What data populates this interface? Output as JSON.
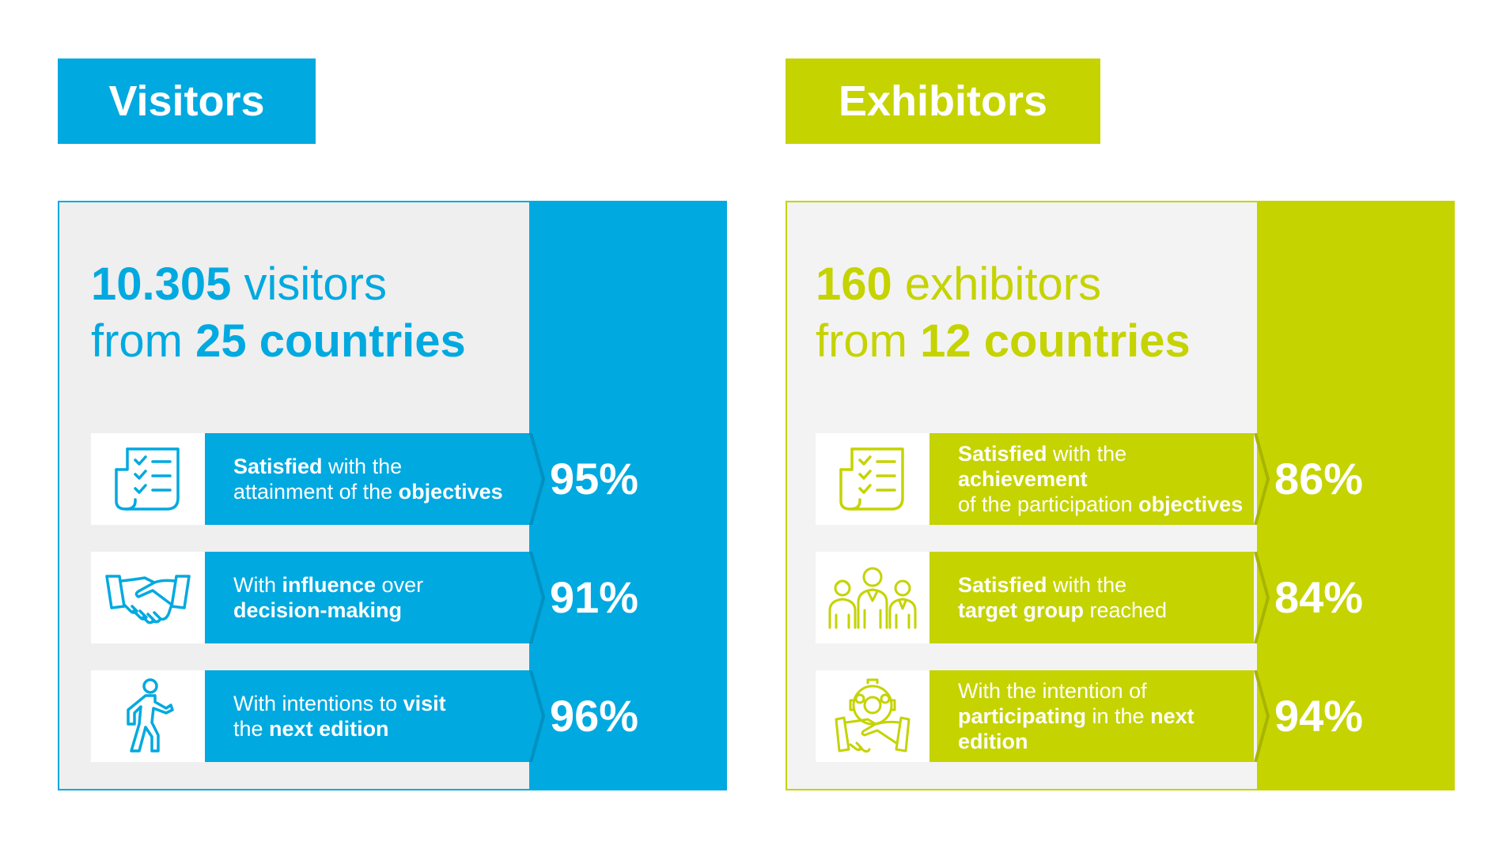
{
  "colors": {
    "visitors": "#00a9e0",
    "exhibitors": "#c5d300"
  },
  "visitors": {
    "tag": "Visitors",
    "headline": {
      "line1_bold": "10.305",
      "line1_rest": " visitors",
      "line2_prefix": "from ",
      "line2_bold": "25 countries"
    },
    "stats": [
      {
        "icon": "checklist-icon",
        "line1": [
          {
            "b": "Satisfied"
          },
          {
            "t": " with the"
          }
        ],
        "line2": [
          {
            "t": "attainment of the "
          },
          {
            "b": "objectives"
          }
        ],
        "value": "95%"
      },
      {
        "icon": "handshake-icon",
        "line1": [
          {
            "t": "With "
          },
          {
            "b": "influence"
          },
          {
            "t": " over"
          }
        ],
        "line2": [
          {
            "b": "decision-making"
          }
        ],
        "value": "91%"
      },
      {
        "icon": "walking-person-icon",
        "line1": [
          {
            "t": "With intentions to "
          },
          {
            "b": "visit"
          }
        ],
        "line2": [
          {
            "t": "the "
          },
          {
            "b": "next edition"
          }
        ],
        "value": "96%"
      }
    ]
  },
  "exhibitors": {
    "tag": "Exhibitors",
    "headline": {
      "line1_bold": "160",
      "line1_rest": " exhibitors",
      "line2_prefix": "from ",
      "line2_bold": "12 countries"
    },
    "stats": [
      {
        "icon": "checklist-icon",
        "line1": [
          {
            "b": "Satisfied"
          },
          {
            "t": " with the "
          },
          {
            "b": "achievement"
          }
        ],
        "line2": [
          {
            "t": "of the participation "
          },
          {
            "b": "objectives"
          }
        ],
        "value": "86%"
      },
      {
        "icon": "group-of-people-icon",
        "line1": [
          {
            "b": "Satisfied"
          },
          {
            "t": " with the"
          }
        ],
        "line2": [
          {
            "b": "target group"
          },
          {
            "t": " reached"
          }
        ],
        "value": "84%"
      },
      {
        "icon": "partnership-gear-icon",
        "line1": [
          {
            "t": "With the intention of"
          }
        ],
        "line2": [
          {
            "b": "participating"
          },
          {
            "t": " in the "
          },
          {
            "b": "next edition"
          }
        ],
        "value": "94%"
      }
    ]
  }
}
